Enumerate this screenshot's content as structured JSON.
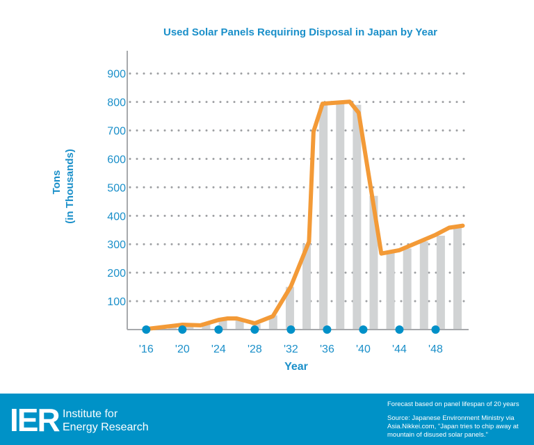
{
  "colors": {
    "title": "#1A8FC9",
    "line": "#F39A37",
    "bars": "#D1D3D4",
    "dots": "#0090C8",
    "grid": "#9D9FA2",
    "footer": "#0092C7"
  },
  "chart_data": {
    "type": "line",
    "title": "Used Solar Panels Requiring Disposal in Japan by Year",
    "xlabel": "Year",
    "ylabel": [
      "Tons",
      "(in Thousands)"
    ],
    "ylim": [
      0,
      980
    ],
    "xlim": [
      2013.9,
      2051.5
    ],
    "grid": true,
    "yticks": [
      100,
      200,
      300,
      400,
      500,
      600,
      700,
      800,
      900
    ],
    "xticks": [
      2016,
      2020,
      2024,
      2028,
      2032,
      2036,
      2040,
      2044,
      2048
    ],
    "xtick_labels": [
      "'16",
      "'20",
      "'24",
      "'28",
      "'32",
      "'36",
      "'40",
      "'44",
      "'48"
    ],
    "series": [
      {
        "type": "line",
        "points": [
          [
            2016,
            2
          ],
          [
            2020,
            17
          ],
          [
            2022,
            15
          ],
          [
            2024,
            34
          ],
          [
            2025,
            39
          ],
          [
            2026,
            39
          ],
          [
            2028,
            22
          ],
          [
            2030,
            47
          ],
          [
            2032,
            152
          ],
          [
            2034,
            309
          ],
          [
            2034.5,
            696
          ],
          [
            2035.5,
            794
          ],
          [
            2038.5,
            801
          ],
          [
            2039.5,
            762
          ],
          [
            2042,
            267
          ],
          [
            2044,
            279
          ],
          [
            2048,
            333
          ],
          [
            2049.5,
            358
          ],
          [
            2051,
            365
          ]
        ]
      },
      {
        "type": "bar",
        "values": [
          0,
          5,
          10,
          15,
          25,
          35,
          35,
          20,
          50,
          150,
          300,
          790,
          800,
          790,
          470,
          270,
          285,
          310,
          330,
          360
        ]
      }
    ]
  },
  "footer": {
    "logo": "IER",
    "org_line1": "Institute",
    "org_line1_b": "for",
    "org_line2": "Energy Research",
    "note": "Forecast based on panel lifespan of 20 years",
    "source": "Source: Japanese Environment Ministry via Asia.Nikkei.com, \"Japan tries to chip away at mountain of disused solar panels.\""
  }
}
